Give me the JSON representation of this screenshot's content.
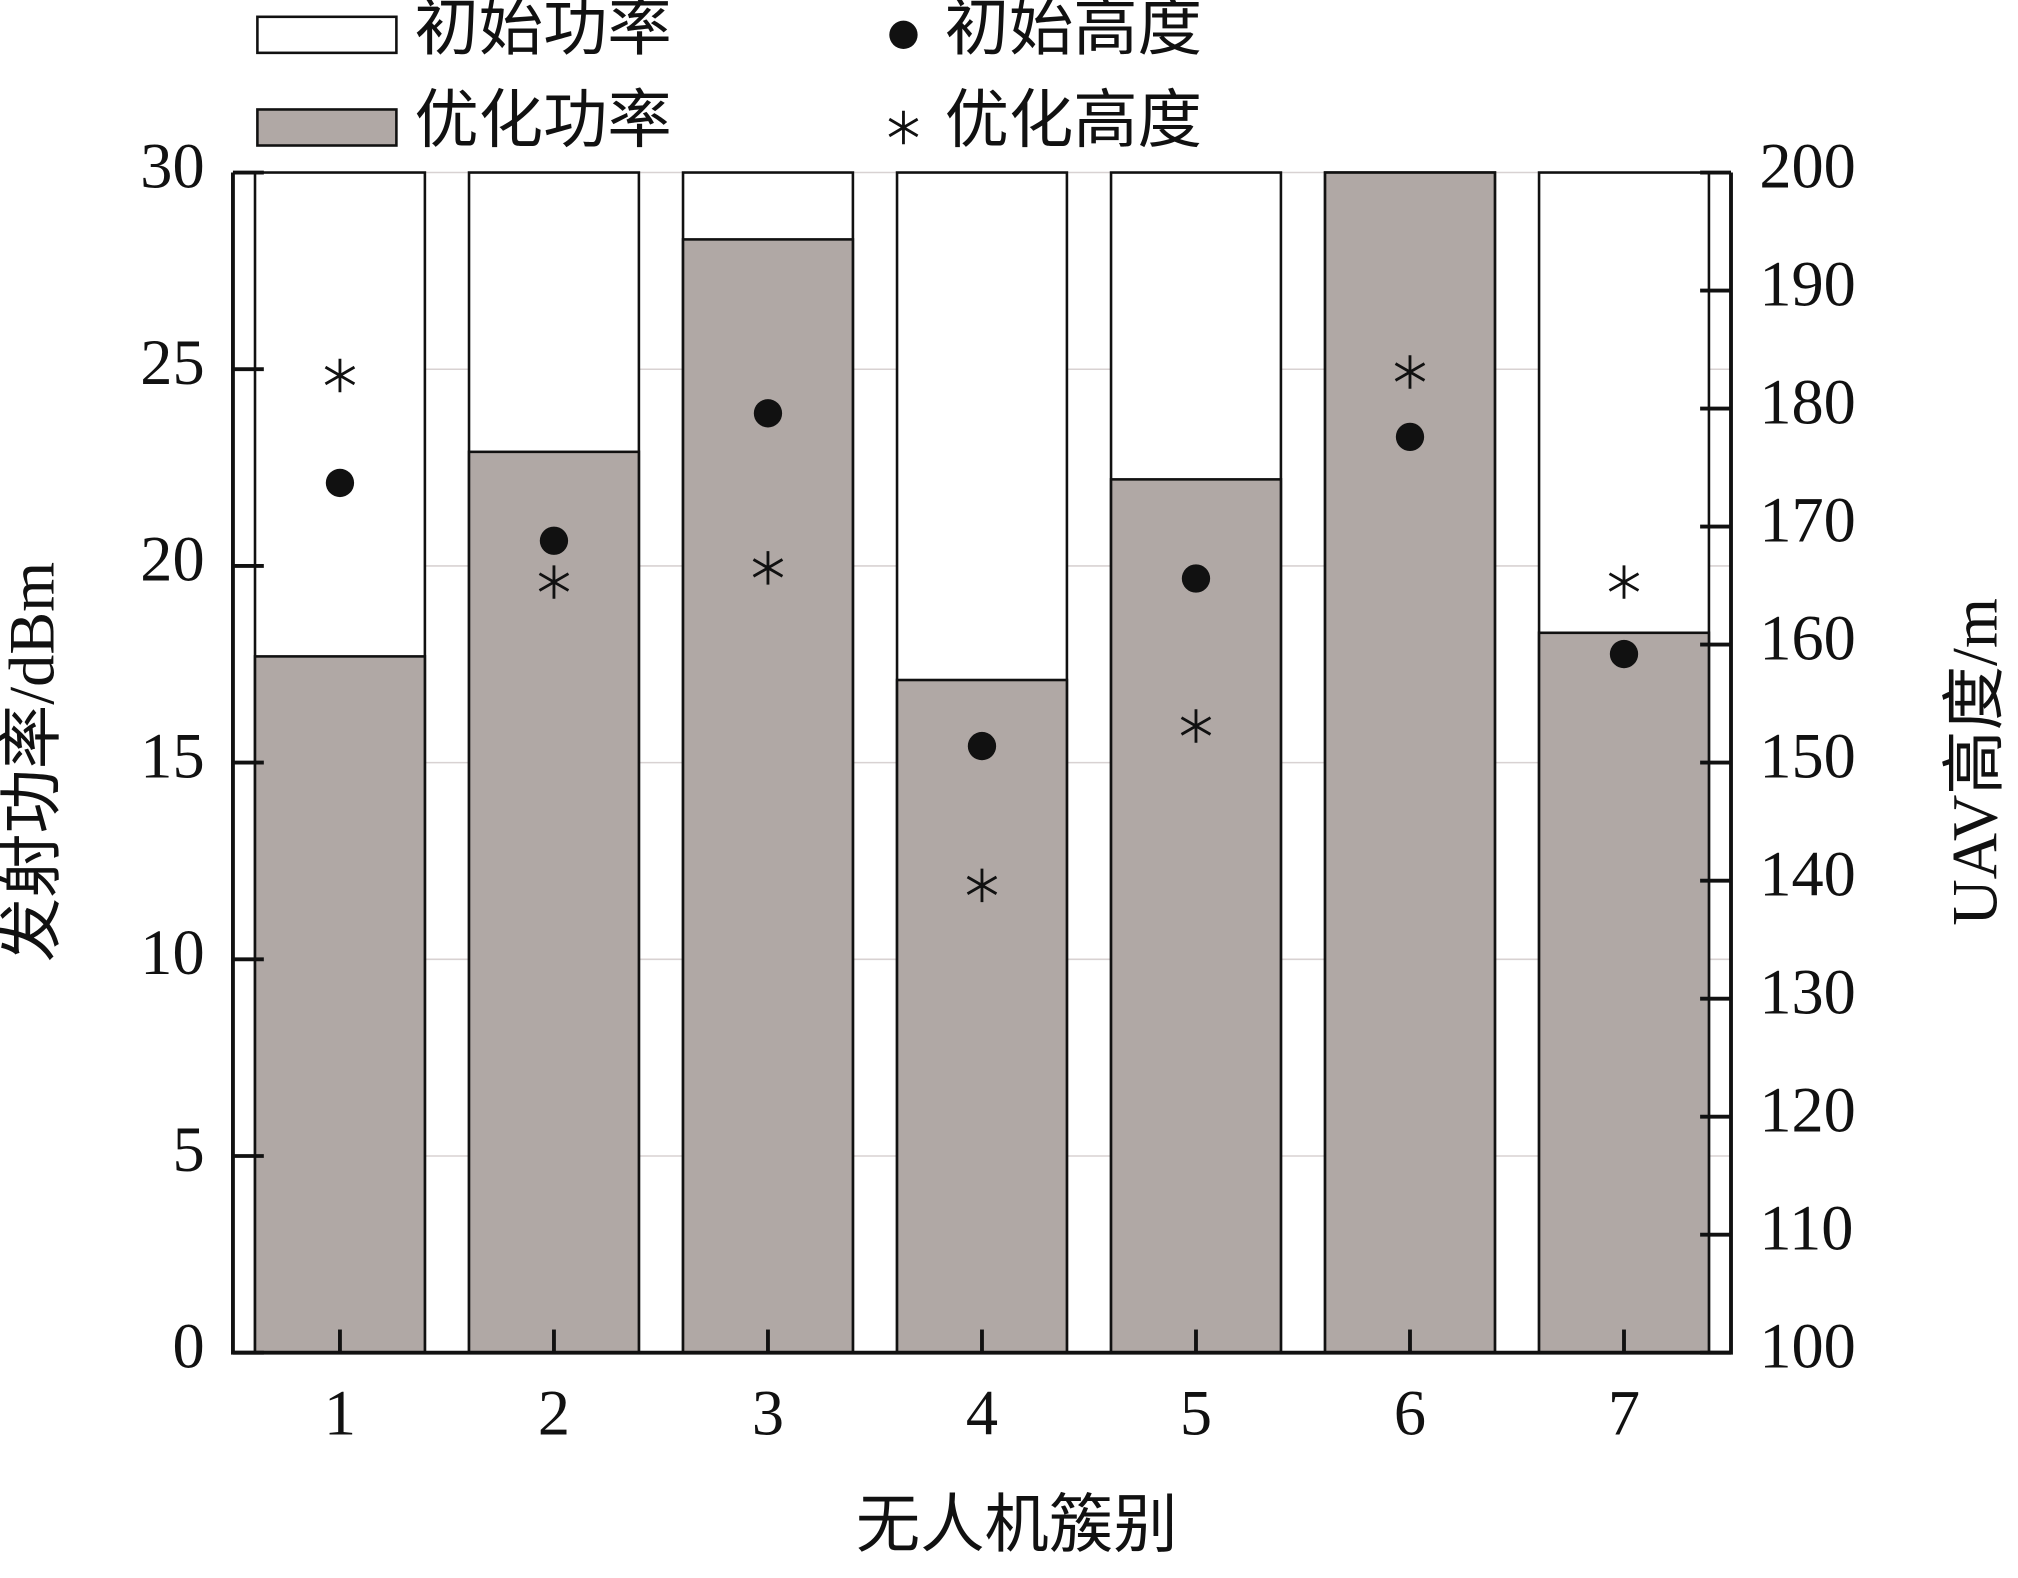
{
  "chart_data": {
    "type": "bar",
    "x_label": "无人机簇别",
    "y_label": "发射功率/dBm",
    "y2_label": "UAV高度/m",
    "categories": [
      "1",
      "2",
      "3",
      "4",
      "5",
      "6",
      "7"
    ],
    "series": [
      {
        "name": "初始功率",
        "color": "#ffffff",
        "marker": "bar",
        "values": [
          30,
          30,
          30,
          30,
          30,
          30,
          30
        ]
      },
      {
        "name": "优化功率",
        "color": "#b0a8a5",
        "marker": "bar",
        "values": [
          17.7,
          22.9,
          28.3,
          17.1,
          22.2,
          30,
          18.3
        ]
      },
      {
        "name": "初始高度",
        "color": "#111111",
        "marker": "circle",
        "axis": "y2",
        "values": [
          173.7,
          168.8,
          179.6,
          151.4,
          165.6,
          177.6,
          159.2
        ]
      },
      {
        "name": "优化高度",
        "color": "#111111",
        "marker": "asterisk",
        "axis": "y2",
        "values": [
          182.8,
          165.3,
          166.5,
          139.6,
          153.1,
          183.1,
          165.3
        ]
      }
    ],
    "ylim": [
      0,
      30
    ],
    "yticks": [
      0,
      5,
      10,
      15,
      20,
      25,
      30
    ],
    "y2lim": [
      100,
      200
    ],
    "y2ticks": [
      100,
      110,
      120,
      130,
      140,
      150,
      160,
      170,
      180,
      190,
      200
    ],
    "grid": true
  }
}
